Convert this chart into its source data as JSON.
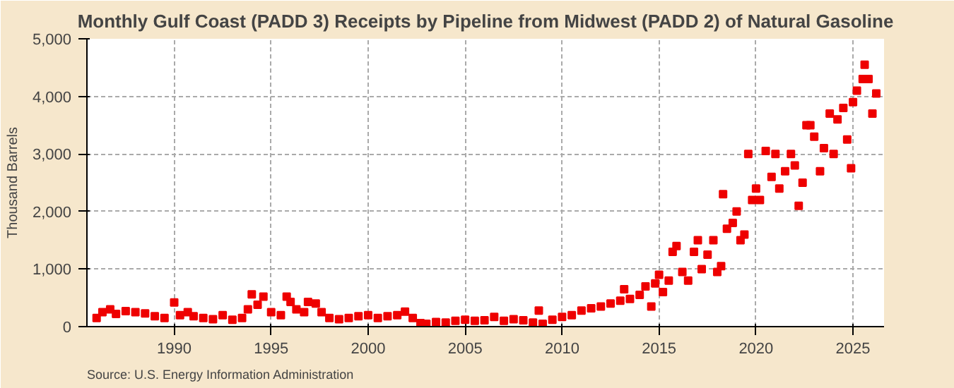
{
  "chart_data": {
    "type": "scatter",
    "title": "Monthly Gulf Coast (PADD 3) Receipts by Pipeline from Midwest (PADD 2) of Natural Gasoline",
    "ylabel": "Thousand Barrels",
    "annotations": [
      "Source: U.S. Energy Information Administration"
    ],
    "x": [
      1986.0,
      1986.3,
      1986.7,
      1987.0,
      1987.5,
      1988.0,
      1988.5,
      1989.0,
      1989.5,
      1990.0,
      1990.3,
      1990.7,
      1991.0,
      1991.5,
      1992.0,
      1992.5,
      1993.0,
      1993.5,
      1993.8,
      1994.0,
      1994.3,
      1994.6,
      1995.0,
      1995.5,
      1995.8,
      1996.0,
      1996.3,
      1996.7,
      1996.9,
      1997.3,
      1997.6,
      1998.0,
      1998.5,
      1999.0,
      1999.5,
      2000.0,
      2000.5,
      2001.0,
      2001.5,
      2001.9,
      2002.3,
      2002.7,
      2003.0,
      2003.5,
      2004.0,
      2004.5,
      2005.0,
      2005.5,
      2006.0,
      2006.5,
      2007.0,
      2007.5,
      2008.0,
      2008.5,
      2008.8,
      2009.0,
      2009.5,
      2010.0,
      2010.5,
      2011.0,
      2011.5,
      2012.0,
      2012.5,
      2013.0,
      2013.2,
      2013.5,
      2014.0,
      2014.3,
      2014.6,
      2014.8,
      2015.0,
      2015.2,
      2015.5,
      2015.7,
      2015.9,
      2016.2,
      2016.5,
      2016.8,
      2017.0,
      2017.2,
      2017.5,
      2017.8,
      2018.0,
      2018.2,
      2018.3,
      2018.5,
      2018.8,
      2019.0,
      2019.2,
      2019.4,
      2019.6,
      2019.8,
      2020.0,
      2020.2,
      2020.5,
      2020.8,
      2021.0,
      2021.2,
      2021.5,
      2021.8,
      2022.0,
      2022.2,
      2022.4,
      2022.6,
      2022.8,
      2023.0,
      2023.3,
      2023.5,
      2023.8,
      2024.0,
      2024.2,
      2024.5,
      2024.7,
      2024.9,
      2025.0,
      2025.2,
      2025.5,
      2025.6,
      2025.8,
      2026.0,
      2026.2
    ],
    "series": [
      {
        "color": "#ee0000",
        "values": [
          150,
          250,
          300,
          220,
          270,
          250,
          230,
          180,
          150,
          420,
          200,
          250,
          180,
          150,
          130,
          200,
          120,
          150,
          300,
          560,
          380,
          520,
          250,
          200,
          520,
          430,
          300,
          250,
          430,
          400,
          250,
          150,
          130,
          150,
          180,
          200,
          150,
          180,
          200,
          260,
          150,
          60,
          50,
          80,
          70,
          100,
          120,
          100,
          110,
          170,
          100,
          130,
          110,
          70,
          280,
          50,
          120,
          170,
          200,
          280,
          320,
          350,
          400,
          450,
          650,
          480,
          550,
          700,
          350,
          750,
          900,
          600,
          800,
          1300,
          1400,
          950,
          800,
          1300,
          1500,
          1000,
          1250,
          1500,
          950,
          1050,
          2300,
          1700,
          1800,
          2000,
          1500,
          1600,
          3000,
          2200,
          2400,
          2200,
          3050,
          2600,
          3000,
          2400,
          2700,
          3000,
          2800,
          2100,
          2500,
          3500,
          3500,
          3300,
          2700,
          3100,
          3700,
          3000,
          3600,
          3800,
          3250,
          2750,
          3900,
          4100,
          4300,
          4550,
          4300,
          3700,
          4050
        ]
      }
    ],
    "xlim": [
      1985.5,
      2026.6
    ],
    "xticks": [
      1990,
      1995,
      2000,
      2005,
      2010,
      2015,
      2020,
      2025
    ],
    "ylim": [
      0,
      5000
    ],
    "yticks": [
      0,
      {
        "value": 1000,
        "label": "1,000"
      },
      {
        "value": 2000,
        "label": "2,000"
      },
      {
        "value": 3000,
        "label": "3,000"
      },
      {
        "value": 4000,
        "label": "4,000"
      },
      {
        "value": 5000,
        "label": "5,000"
      }
    ],
    "grid": true,
    "marker": "square"
  }
}
